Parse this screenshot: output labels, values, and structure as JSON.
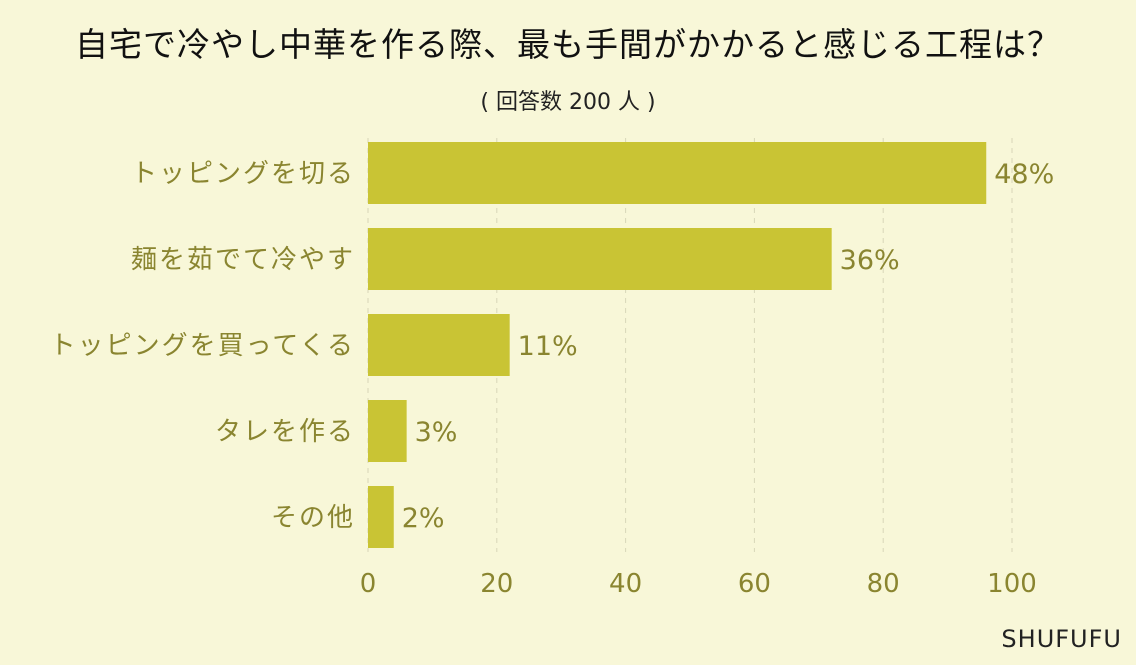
{
  "chart_data": {
    "type": "bar",
    "orientation": "horizontal",
    "title": "自宅で冷やし中華を作る際、最も手間がかかると感じる工程は？",
    "subtitle": "( 回答数 200 人 )",
    "categories": [
      "トッピングを切る",
      "麺を茹でて冷やす",
      "トッピングを買ってくる",
      "タレを作る",
      "その他"
    ],
    "values": [
      48,
      36,
      11,
      3,
      2
    ],
    "value_labels": [
      "48%",
      "36%",
      "11%",
      "3%",
      "2%"
    ],
    "xlim": [
      0,
      100
    ],
    "xticks": [
      "0",
      "20",
      "40",
      "60",
      "80",
      "100"
    ],
    "grid": "vertical dashed",
    "colors": {
      "bar": "#c9c434",
      "label": "#8a8530",
      "grid": "#d8d6b8"
    }
  },
  "credit": "SHUFUFU"
}
